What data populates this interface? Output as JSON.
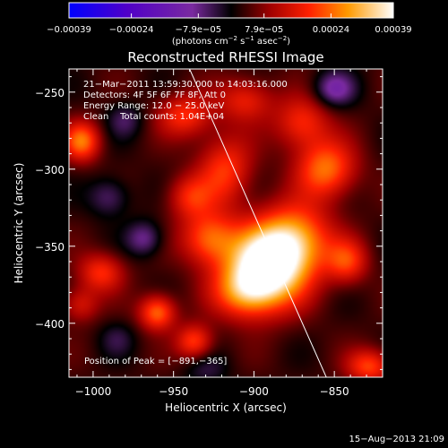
{
  "chart_data": {
    "type": "heatmap",
    "title": "Reconstructed RHESSI Image",
    "xlabel": "Heliocentric X (arcsec)",
    "ylabel": "Heliocentric Y (arcsec)",
    "xlim": [
      -1015,
      -820
    ],
    "ylim": [
      -435,
      -235
    ],
    "xticks": [
      -1000,
      -950,
      -900,
      -850
    ],
    "xtick_labels": [
      "−1000",
      "−950",
      "−900",
      "−850"
    ],
    "yticks": [
      -250,
      -300,
      -350,
      -400
    ],
    "ytick_labels": [
      "−250",
      "−300",
      "−350",
      "−400"
    ],
    "colorbar": {
      "range": [
        -0.00039,
        0.00039
      ],
      "ticks": [
        -0.00039,
        -0.00024,
        -7.9e-05,
        7.9e-05,
        0.00024,
        0.00039
      ],
      "tick_labels": [
        "−0.00039",
        "−0.00024",
        "−7.9e−05",
        "7.9e−05",
        "0.00024",
        "0.00039"
      ],
      "units_prefix": "(photons cm",
      "units_sup1": "−2",
      "units_mid": " s",
      "units_sup2": "−1",
      "units_mid2": " asec",
      "units_sup3": "−2",
      "units_suffix": ")"
    },
    "annotations": [
      "21−Mar−2011 13:59:30.000 to 14:03:16.000",
      "Detectors: 4F 5F 6F 7F 8F, Att 0",
      "Energy Range: 12.0 − 25.0 keV",
      "Clean    Total counts: 1.04E+04"
    ],
    "peak_label": "Position of Peak = [−891,−365]",
    "peak": [
      -891,
      -365
    ],
    "limb_line": [
      [
        -940,
        -235
      ],
      [
        -855,
        -435
      ]
    ],
    "sources": [
      {
        "x": -892,
        "y": -363,
        "sx": 18,
        "sy": 18,
        "a": 1.0
      },
      {
        "x": -874,
        "y": -345,
        "sx": 16,
        "sy": 16,
        "a": 0.55
      },
      {
        "x": -905,
        "y": -380,
        "sx": 14,
        "sy": 12,
        "a": 0.45
      },
      {
        "x": -855,
        "y": -300,
        "sx": 13,
        "sy": 13,
        "a": 0.55
      },
      {
        "x": -870,
        "y": -270,
        "sx": 12,
        "sy": 12,
        "a": 0.4
      },
      {
        "x": -918,
        "y": -300,
        "sx": 12,
        "sy": 16,
        "a": 0.42
      },
      {
        "x": -928,
        "y": -345,
        "sx": 12,
        "sy": 12,
        "a": 0.5
      },
      {
        "x": -940,
        "y": -318,
        "sx": 10,
        "sy": 10,
        "a": 0.35
      },
      {
        "x": -943,
        "y": -265,
        "sx": 12,
        "sy": 10,
        "a": 0.4
      },
      {
        "x": -905,
        "y": -255,
        "sx": 12,
        "sy": 10,
        "a": 0.35
      },
      {
        "x": -1007,
        "y": -282,
        "sx": 8,
        "sy": 9,
        "a": 0.55
      },
      {
        "x": -995,
        "y": -367,
        "sx": 10,
        "sy": 9,
        "a": 0.4
      },
      {
        "x": -1008,
        "y": -388,
        "sx": 8,
        "sy": 8,
        "a": 0.3
      },
      {
        "x": -960,
        "y": -393,
        "sx": 8,
        "sy": 8,
        "a": 0.55
      },
      {
        "x": -937,
        "y": -412,
        "sx": 8,
        "sy": 8,
        "a": 0.45
      },
      {
        "x": -828,
        "y": -428,
        "sx": 10,
        "sy": 8,
        "a": 0.45
      },
      {
        "x": -842,
        "y": -360,
        "sx": 9,
        "sy": 10,
        "a": 0.4
      },
      {
        "x": -990,
        "y": -318,
        "sx": 9,
        "sy": 9,
        "a": -0.25
      },
      {
        "x": -968,
        "y": -345,
        "sx": 8,
        "sy": 8,
        "a": -0.3
      },
      {
        "x": -850,
        "y": -248,
        "sx": 9,
        "sy": 8,
        "a": -0.35
      },
      {
        "x": -980,
        "y": -268,
        "sx": 8,
        "sy": 8,
        "a": -0.2
      },
      {
        "x": -930,
        "y": -430,
        "sx": 10,
        "sy": 8,
        "a": -0.15
      },
      {
        "x": -985,
        "y": -410,
        "sx": 8,
        "sy": 8,
        "a": -0.15
      }
    ],
    "background_level": 0.08
  },
  "footer": {
    "timestamp": "15−Aug−2013 21:09"
  }
}
